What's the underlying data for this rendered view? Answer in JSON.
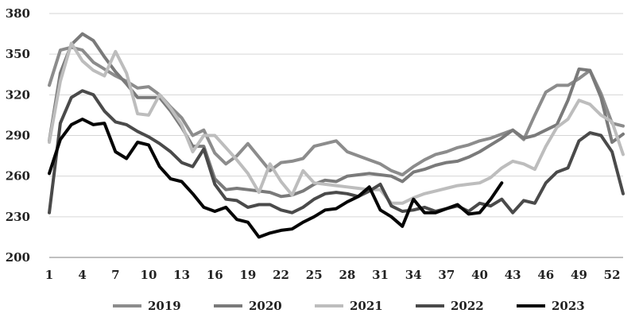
{
  "chart_data": {
    "type": "line",
    "title": "",
    "xlabel": "",
    "ylabel": "",
    "ylim": [
      200,
      380
    ],
    "xlim": [
      1,
      53
    ],
    "y_ticks": [
      200,
      230,
      260,
      290,
      320,
      350,
      380
    ],
    "x_ticks": [
      1,
      4,
      7,
      10,
      13,
      16,
      19,
      22,
      25,
      28,
      31,
      34,
      37,
      40,
      43,
      46,
      49,
      52
    ],
    "grid": "horizontal",
    "legend": "bottom",
    "series": [
      {
        "name": "2019",
        "color": "#8c8c8c",
        "x": [
          1,
          2,
          3,
          4,
          5,
          6,
          7,
          8,
          9,
          10,
          11,
          12,
          13,
          14,
          15,
          16,
          17,
          18,
          19,
          20,
          21,
          22,
          23,
          24,
          25,
          26,
          27,
          28,
          29,
          30,
          31,
          32,
          33,
          34,
          35,
          36,
          37,
          38,
          39,
          40,
          41,
          42,
          43,
          44,
          45,
          46,
          47,
          48,
          49,
          50,
          51,
          52,
          53
        ],
        "values": [
          327,
          353,
          355,
          353,
          344,
          339,
          334,
          330,
          325,
          326,
          320,
          311,
          303,
          290,
          294,
          277,
          269,
          275,
          284,
          274,
          264,
          270,
          271,
          273,
          282,
          284,
          286,
          278,
          275,
          272,
          269,
          264,
          261,
          267,
          272,
          276,
          278,
          281,
          283,
          286,
          288,
          291,
          294,
          287,
          305,
          322,
          327,
          327,
          332,
          338,
          321,
          299,
          297
        ]
      },
      {
        "name": "2020",
        "color": "#7a7a7a",
        "x": [
          1,
          2,
          3,
          4,
          5,
          6,
          7,
          8,
          9,
          10,
          11,
          12,
          13,
          14,
          15,
          16,
          17,
          18,
          19,
          20,
          21,
          22,
          23,
          24,
          25,
          26,
          27,
          28,
          29,
          30,
          31,
          32,
          33,
          34,
          35,
          36,
          37,
          38,
          39,
          40,
          41,
          42,
          43,
          44,
          45,
          46,
          47,
          48,
          49,
          50,
          51,
          52,
          53
        ],
        "values": [
          286,
          336,
          357,
          365,
          360,
          348,
          337,
          328,
          318,
          318,
          318,
          308,
          296,
          282,
          282,
          258,
          250,
          251,
          250,
          249,
          248,
          245,
          246,
          249,
          254,
          257,
          256,
          260,
          261,
          262,
          261,
          260,
          256,
          263,
          265,
          268,
          270,
          271,
          274,
          278,
          283,
          288,
          294,
          288,
          290,
          294,
          298,
          316,
          339,
          338,
          318,
          285,
          291
        ]
      },
      {
        "name": "2021",
        "color": "#bdbdbd",
        "x": [
          1,
          2,
          3,
          4,
          5,
          6,
          7,
          8,
          9,
          10,
          11,
          12,
          13,
          14,
          15,
          16,
          17,
          18,
          19,
          20,
          21,
          22,
          23,
          24,
          25,
          26,
          27,
          28,
          29,
          30,
          31,
          32,
          33,
          34,
          35,
          36,
          37,
          38,
          39,
          40,
          41,
          42,
          43,
          44,
          45,
          46,
          47,
          48,
          49,
          50,
          51,
          52,
          53
        ],
        "values": [
          285,
          330,
          358,
          345,
          338,
          334,
          352,
          336,
          306,
          305,
          320,
          310,
          298,
          278,
          290,
          290,
          281,
          272,
          262,
          248,
          269,
          256,
          246,
          264,
          255,
          254,
          253,
          252,
          251,
          250,
          250,
          240,
          240,
          244,
          247,
          249,
          251,
          253,
          254,
          255,
          259,
          266,
          271,
          269,
          265,
          282,
          296,
          302,
          316,
          313,
          305,
          300,
          276
        ]
      },
      {
        "name": "2022",
        "color": "#4a4a4a",
        "x": [
          1,
          2,
          3,
          4,
          5,
          6,
          7,
          8,
          9,
          10,
          11,
          12,
          13,
          14,
          15,
          16,
          17,
          18,
          19,
          20,
          21,
          22,
          23,
          24,
          25,
          26,
          27,
          28,
          29,
          30,
          31,
          32,
          33,
          34,
          35,
          36,
          37,
          38,
          39,
          40,
          41,
          42,
          43,
          44,
          45,
          46,
          47,
          48,
          49,
          50,
          51,
          52,
          53
        ],
        "values": [
          233,
          299,
          318,
          323,
          320,
          308,
          300,
          298,
          293,
          289,
          284,
          278,
          270,
          267,
          280,
          254,
          243,
          242,
          237,
          239,
          239,
          235,
          233,
          237,
          243,
          247,
          248,
          247,
          245,
          249,
          254,
          238,
          234,
          235,
          237,
          234,
          236,
          238,
          234,
          240,
          238,
          243,
          233,
          242,
          240,
          255,
          263,
          266,
          286,
          292,
          290,
          278,
          247
        ]
      },
      {
        "name": "2023",
        "color": "#050505",
        "x": [
          1,
          2,
          3,
          4,
          5,
          6,
          7,
          8,
          9,
          10,
          11,
          12,
          13,
          14,
          15,
          16,
          17,
          18,
          19,
          20,
          21,
          22,
          23,
          24,
          25,
          26,
          27,
          28,
          29,
          30,
          31,
          32,
          33,
          34,
          35,
          36,
          37,
          38,
          39,
          40,
          41,
          42
        ],
        "values": [
          262,
          287,
          298,
          302,
          298,
          299,
          278,
          273,
          285,
          283,
          267,
          258,
          256,
          247,
          237,
          234,
          237,
          228,
          226,
          215,
          218,
          220,
          221,
          226,
          230,
          235,
          236,
          241,
          245,
          252,
          235,
          230,
          223,
          243,
          233,
          233,
          236,
          239,
          232,
          233,
          243,
          255
        ]
      }
    ]
  }
}
